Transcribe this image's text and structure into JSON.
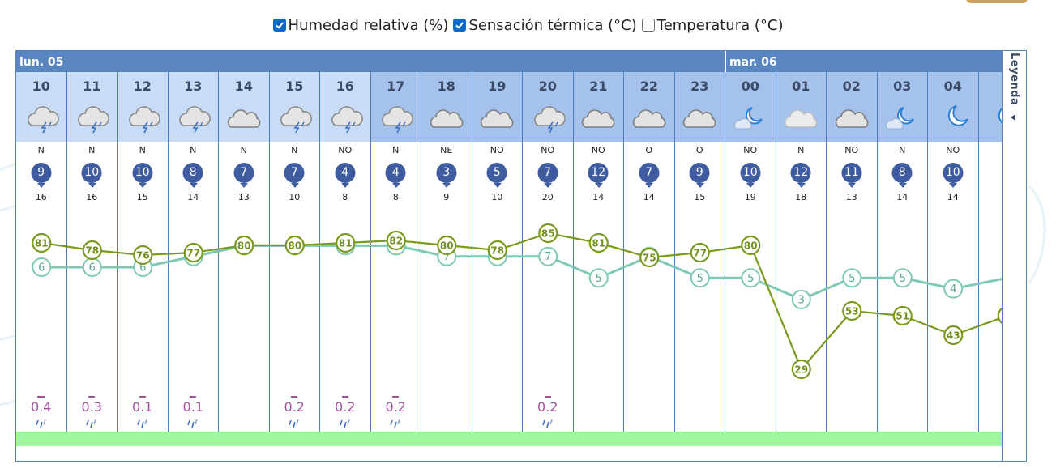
{
  "toolbar": {
    "options": [
      {
        "label": "Humedad relativa (%)",
        "checked": true
      },
      {
        "label": "Sensación térmica (°C)",
        "checked": true
      },
      {
        "label": "Temperatura (°C)",
        "checked": false
      }
    ]
  },
  "days": [
    {
      "label": "lun. 05"
    },
    {
      "label": "mar. 06"
    }
  ],
  "legend": {
    "label": "Leyenda"
  },
  "hours": [
    {
      "hour": "10",
      "icon": "storm-cloud-icon",
      "dir": "N",
      "wind": "9",
      "gust": "16",
      "rain": "0.4",
      "shade": "light"
    },
    {
      "hour": "11",
      "icon": "storm-cloud-icon",
      "dir": "N",
      "wind": "10",
      "gust": "16",
      "rain": "0.3",
      "shade": "light"
    },
    {
      "hour": "12",
      "icon": "storm-cloud-icon",
      "dir": "N",
      "wind": "10",
      "gust": "15",
      "rain": "0.1",
      "shade": "light"
    },
    {
      "hour": "13",
      "icon": "storm-cloud-icon",
      "dir": "N",
      "wind": "8",
      "gust": "14",
      "rain": "0.1",
      "shade": "light"
    },
    {
      "hour": "14",
      "icon": "cloud-icon",
      "dir": "N",
      "wind": "7",
      "gust": "13",
      "rain": "",
      "shade": "light"
    },
    {
      "hour": "15",
      "icon": "storm-cloud-icon",
      "dir": "N",
      "wind": "7",
      "gust": "10",
      "rain": "0.2",
      "shade": "light"
    },
    {
      "hour": "16",
      "icon": "storm-cloud-icon",
      "dir": "NO",
      "wind": "4",
      "gust": "8",
      "rain": "0.2",
      "shade": "light"
    },
    {
      "hour": "17",
      "icon": "storm-cloud-icon",
      "dir": "N",
      "wind": "4",
      "gust": "8",
      "rain": "0.2",
      "shade": "dark"
    },
    {
      "hour": "18",
      "icon": "cloud-icon",
      "dir": "NE",
      "wind": "3",
      "gust": "9",
      "rain": "",
      "shade": "dark"
    },
    {
      "hour": "19",
      "icon": "cloud-icon",
      "dir": "NO",
      "wind": "5",
      "gust": "10",
      "rain": "",
      "shade": "dark"
    },
    {
      "hour": "20",
      "icon": "storm-cloud-icon",
      "dir": "NO",
      "wind": "7",
      "gust": "20",
      "rain": "0.2",
      "shade": "dark"
    },
    {
      "hour": "21",
      "icon": "cloud-icon",
      "dir": "NO",
      "wind": "12",
      "gust": "14",
      "rain": "",
      "shade": "dark"
    },
    {
      "hour": "22",
      "icon": "cloud-icon",
      "dir": "O",
      "wind": "7",
      "gust": "14",
      "rain": "",
      "shade": "dark"
    },
    {
      "hour": "23",
      "icon": "cloud-icon",
      "dir": "O",
      "wind": "9",
      "gust": "15",
      "rain": "",
      "shade": "dark"
    },
    {
      "hour": "00",
      "icon": "moon-cloud-icon",
      "dir": "NO",
      "wind": "10",
      "gust": "19",
      "rain": "",
      "shade": "dark"
    },
    {
      "hour": "01",
      "icon": "light-cloud-icon",
      "dir": "N",
      "wind": "12",
      "gust": "18",
      "rain": "",
      "shade": "dark"
    },
    {
      "hour": "02",
      "icon": "cloud-icon",
      "dir": "NO",
      "wind": "11",
      "gust": "13",
      "rain": "",
      "shade": "dark"
    },
    {
      "hour": "03",
      "icon": "moon-cloud-icon",
      "dir": "N",
      "wind": "8",
      "gust": "14",
      "rain": "",
      "shade": "dark"
    },
    {
      "hour": "04",
      "icon": "moon-icon",
      "dir": "NO",
      "wind": "10",
      "gust": "14",
      "rain": "",
      "shade": "dark"
    },
    {
      "hour": "",
      "icon": "moon-icon",
      "dir": "",
      "wind": "",
      "gust": "",
      "rain": "",
      "shade": "dark"
    }
  ],
  "chart_data": {
    "type": "line",
    "x": [
      "10",
      "11",
      "12",
      "13",
      "14",
      "15",
      "16",
      "17",
      "18",
      "19",
      "20",
      "21",
      "22",
      "23",
      "00",
      "01",
      "02",
      "03",
      "04"
    ],
    "series": [
      {
        "name": "Humedad relativa (%)",
        "color": "#7a9a1e",
        "values": [
          81,
          78,
          76,
          77,
          80,
          80,
          81,
          82,
          80,
          78,
          85,
          81,
          75,
          77,
          80,
          29,
          53,
          51,
          43
        ]
      },
      {
        "name": "Sensación térmica (°C)",
        "color": "#7fc8b6",
        "values": [
          6,
          6,
          6,
          7,
          8,
          8,
          8,
          8,
          7,
          7,
          7,
          5,
          7,
          5,
          5,
          3,
          5,
          5,
          4
        ]
      }
    ]
  },
  "colors": {
    "header_light": "#c8dcf8",
    "header_dark": "#a4c2ec",
    "day_band": "#5a86bf",
    "wind_circle": "#3e5c9f",
    "rain_text": "#a6509e",
    "bottom_bar": "#a2f59f"
  }
}
